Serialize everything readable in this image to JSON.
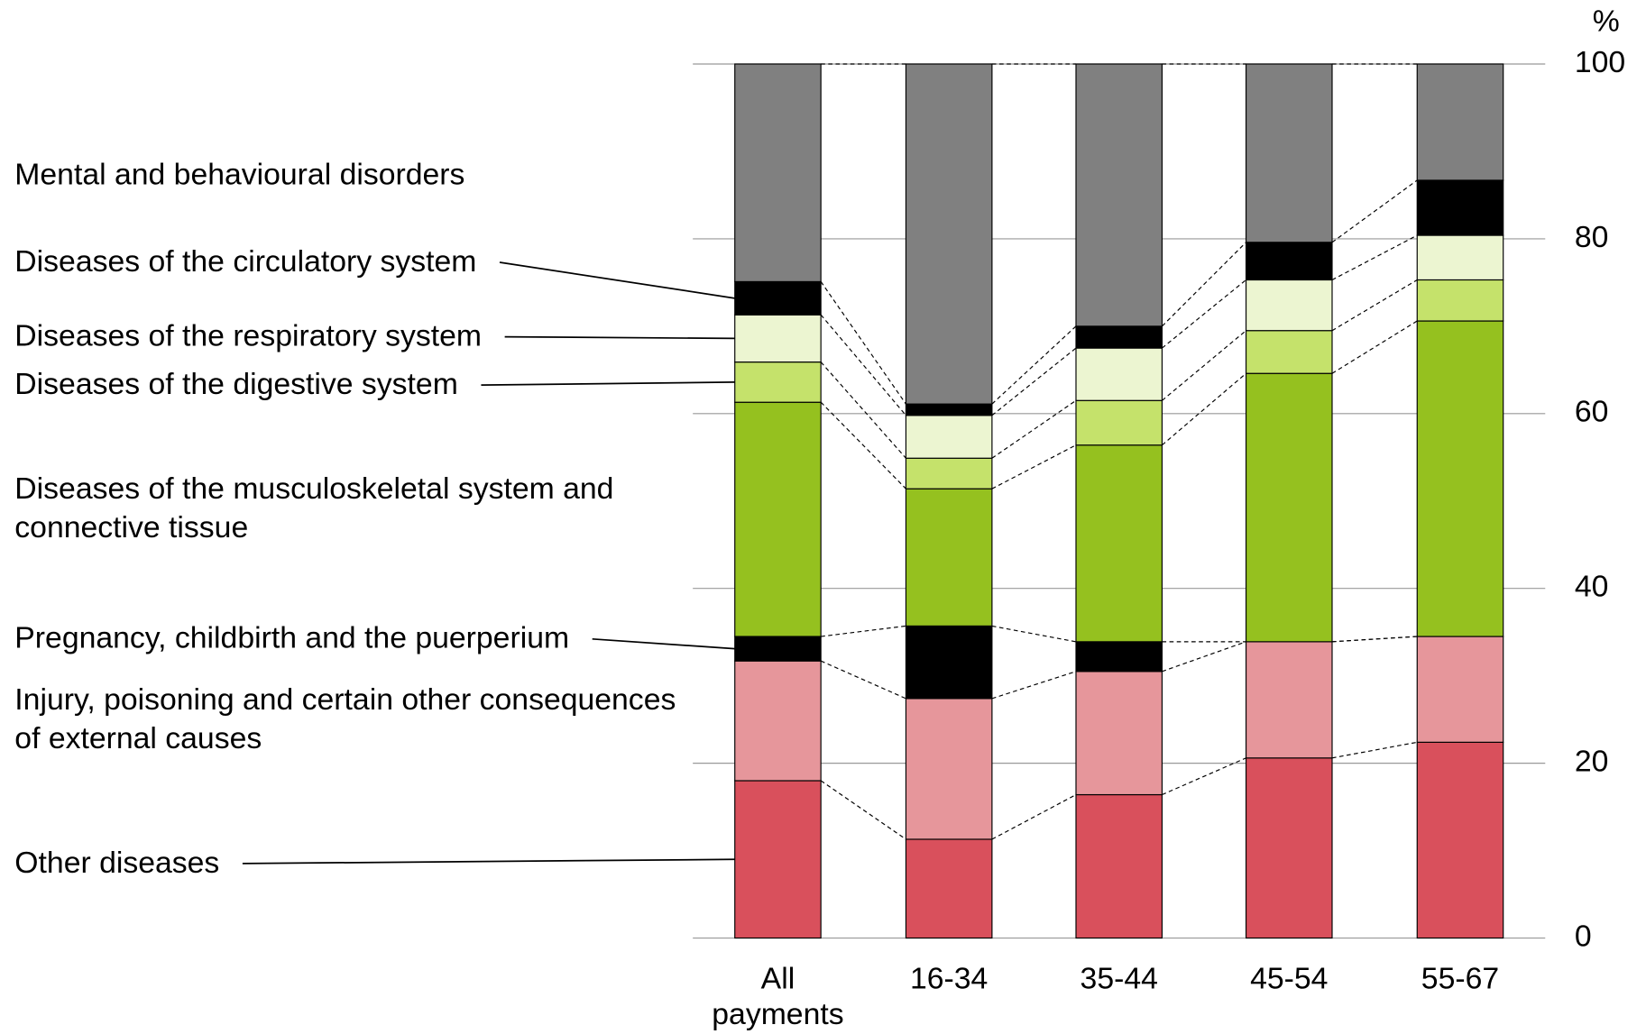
{
  "chart_data": {
    "type": "stacked-bar",
    "y_unit": "%",
    "categories": [
      "All payments",
      "16-34",
      "35-44",
      "45-54",
      "55-67"
    ],
    "ylim": [
      0,
      100
    ],
    "yticks": [
      0,
      20,
      40,
      60,
      80,
      100
    ],
    "grid": true,
    "series": [
      {
        "name": "Other diseases",
        "color": "#d9505c",
        "values": [
          18.0,
          11.3,
          16.4,
          20.6,
          22.4
        ]
      },
      {
        "name": "Injury, poisoning and certain other consequences of external causes",
        "color": "#e6969b",
        "values": [
          13.7,
          16.1,
          14.1,
          13.3,
          12.1
        ]
      },
      {
        "name": "Pregnancy, childbirth and the puerperium",
        "color": "#000000",
        "values": [
          2.8,
          8.3,
          3.4,
          0,
          0
        ]
      },
      {
        "name": "Diseases of the musculoskeletal system and connective tissue",
        "color": "#95c11f",
        "values": [
          26.8,
          15.7,
          22.5,
          30.7,
          36.1
        ]
      },
      {
        "name": "Diseases of the digestive system",
        "color": "#c5e26b",
        "values": [
          4.6,
          3.5,
          5.1,
          4.9,
          4.7
        ]
      },
      {
        "name": "Diseases of the respiratory system",
        "color": "#ecf5d1",
        "values": [
          5.4,
          4.9,
          6.0,
          5.8,
          5.1
        ]
      },
      {
        "name": "Diseases of the circulatory system",
        "color": "#000000",
        "values": [
          3.8,
          1.3,
          2.5,
          4.3,
          6.3
        ]
      },
      {
        "name": "Mental and behavioural disorders",
        "color": "#808080",
        "values": [
          24.9,
          38.9,
          30.0,
          20.4,
          13.3
        ]
      }
    ]
  }
}
